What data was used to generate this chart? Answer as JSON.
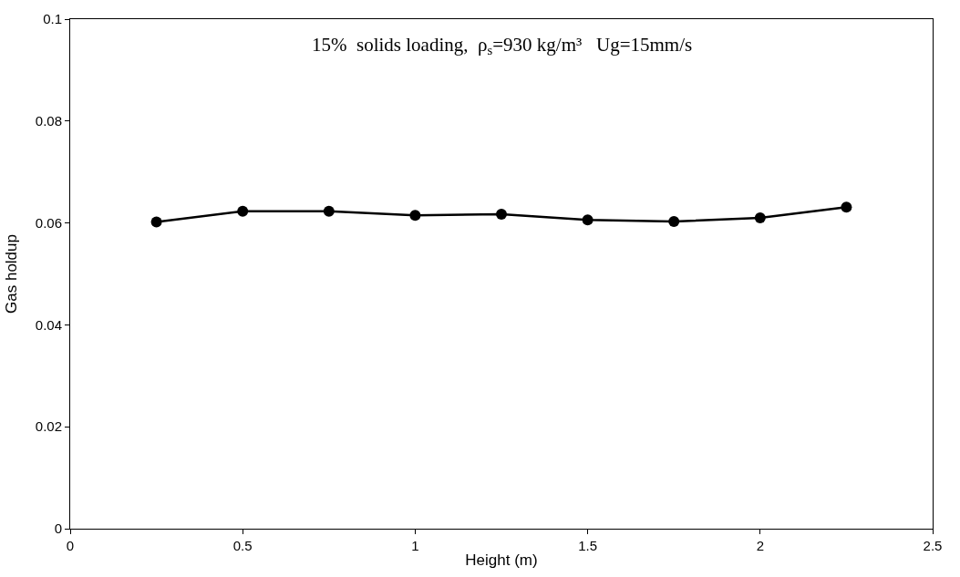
{
  "chart_data": {
    "type": "line",
    "xlabel": "Height (m)",
    "ylabel": "Gas holdup",
    "annotations": [
      "15%  solids loading,  ρ$_{s}$=930 kg/m³   Ug=15mm/s"
    ],
    "x": [
      0.25,
      0.5,
      0.75,
      1,
      1.25,
      1.5,
      1.75,
      2,
      2.25
    ],
    "series": [
      {
        "color": "#000000",
        "values": [
          0.0602,
          0.0623,
          0.0623,
          0.0615,
          0.0617,
          0.0606,
          0.0603,
          0.061,
          0.0631
        ]
      }
    ],
    "xlim": [
      0,
      2.5
    ],
    "xticks": [
      0,
      0.5,
      1,
      1.5,
      2,
      2.5
    ],
    "ylim": [
      0,
      0.1
    ],
    "yticks": [
      0,
      0.02,
      0.04,
      0.06,
      0.08,
      0.1
    ],
    "marker": "circle",
    "line_style": "solid"
  }
}
